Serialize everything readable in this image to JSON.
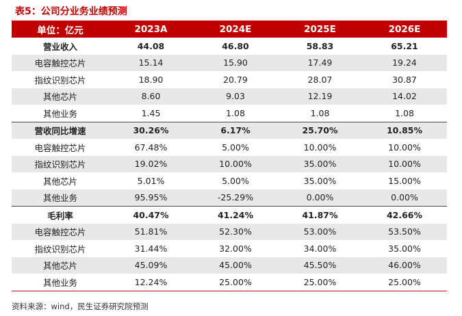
{
  "title": "表5：公司分业务业绩预测",
  "header": [
    "单位：亿元",
    "2023A",
    "2024E",
    "2025E",
    "2026E"
  ],
  "rows": [
    {
      "label": "营业收入",
      "values": [
        "44.08",
        "46.80",
        "58.83",
        "65.21"
      ]
    },
    {
      "label": "电容触控芯片",
      "values": [
        "15.14",
        "15.90",
        "17.49",
        "19.24"
      ]
    },
    {
      "label": "指纹识别芯片",
      "values": [
        "18.90",
        "20.79",
        "28.07",
        "30.87"
      ]
    },
    {
      "label": "其他芯片",
      "values": [
        "8.60",
        "9.03",
        "12.19",
        "14.02"
      ]
    },
    {
      "label": "其他业务",
      "values": [
        "1.45",
        "1.08",
        "1.08",
        "1.08"
      ]
    },
    {
      "label": "营收同比增速",
      "values": [
        "30.26%",
        "6.17%",
        "25.70%",
        "10.85%"
      ]
    },
    {
      "label": "电容触控芯片",
      "values": [
        "67.48%",
        "5.00%",
        "10.00%",
        "10.00%"
      ]
    },
    {
      "label": "指纹识别芯片",
      "values": [
        "19.02%",
        "10.00%",
        "35.00%",
        "10.00%"
      ]
    },
    {
      "label": "其他芯片",
      "values": [
        "5.01%",
        "5.00%",
        "35.00%",
        "15.00%"
      ]
    },
    {
      "label": "其他业务",
      "values": [
        "95.95%",
        "-25.29%",
        "0.00%",
        "0.00%"
      ]
    },
    {
      "label": "毛利率",
      "values": [
        "40.47%",
        "41.24%",
        "41.87%",
        "42.66%"
      ]
    },
    {
      "label": "电容触控芯片",
      "values": [
        "51.81%",
        "52.30%",
        "53.00%",
        "53.50%"
      ]
    },
    {
      "label": "指纹识别芯片",
      "values": [
        "31.44%",
        "32.00%",
        "34.00%",
        "35.00%"
      ]
    },
    {
      "label": "其他芯片",
      "values": [
        "45.09%",
        "45.00%",
        "45.50%",
        "46.00%"
      ]
    },
    {
      "label": "其他业务",
      "values": [
        "12.24%",
        "25.00%",
        "25.00%",
        "25.00%"
      ]
    }
  ],
  "source": "资料来源：wind，民生证券研究院预测"
}
